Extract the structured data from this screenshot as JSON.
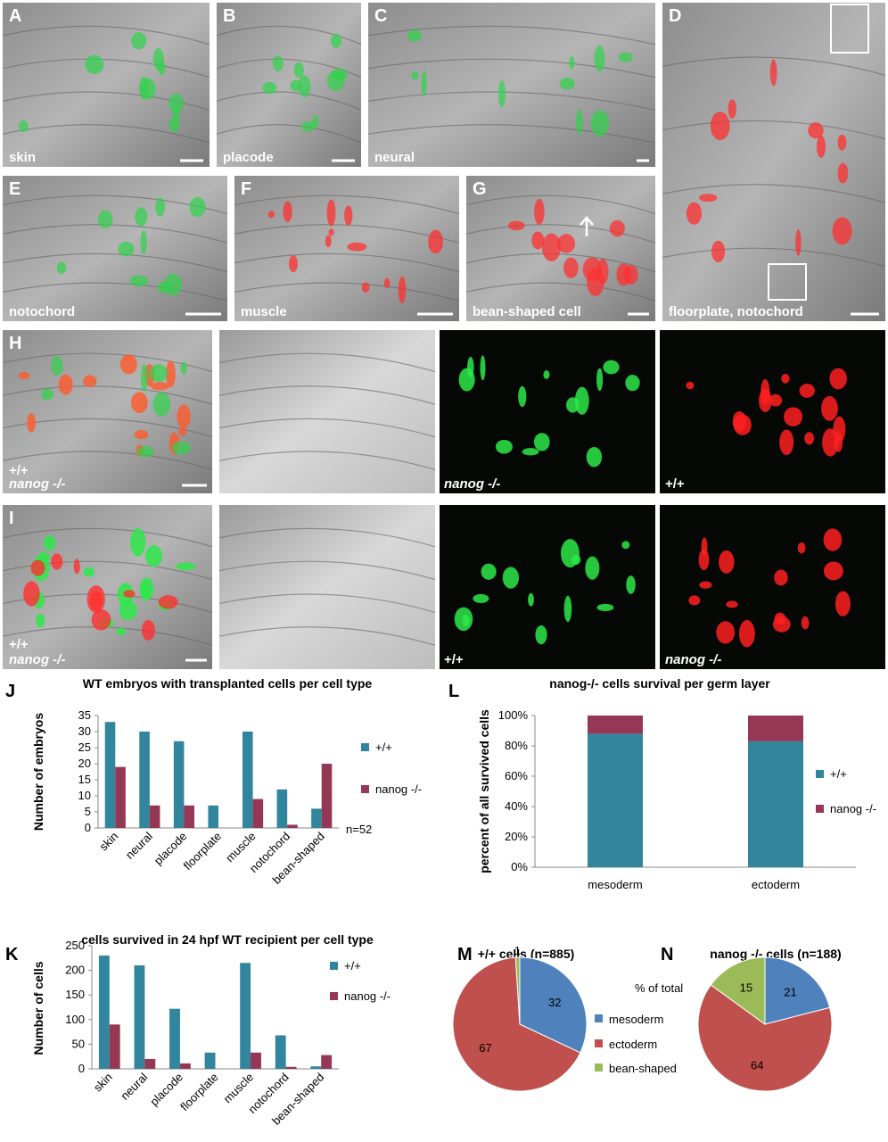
{
  "figure": {
    "panels": [
      {
        "letter": "A",
        "captions": [
          "skin"
        ]
      },
      {
        "letter": "B",
        "captions": [
          "placode"
        ]
      },
      {
        "letter": "C",
        "captions": [
          "neural"
        ]
      },
      {
        "letter": "D",
        "captions": [
          "floorplate, notochord"
        ]
      },
      {
        "letter": "E",
        "captions": [
          "notochord"
        ]
      },
      {
        "letter": "F",
        "captions": [
          "muscle"
        ]
      },
      {
        "letter": "G",
        "captions": [
          "bean-shaped cell"
        ]
      },
      {
        "letter": "H",
        "captions": [
          "+/+",
          "nanog -/-",
          "nanog -/-",
          "+/+"
        ]
      },
      {
        "letter": "I",
        "captions": [
          "+/+",
          "nanog -/-",
          "+/+",
          "nanog -/-"
        ]
      }
    ]
  },
  "chart_data": [
    {
      "type": "bar",
      "letter": "J",
      "title": "WT embryos with transplanted cells per cell type",
      "y_label": "Number of embryos",
      "annotation": "n=52",
      "categories": [
        "skin",
        "neural",
        "placode",
        "floorplate",
        "muscle",
        "notochord",
        "bean-shaped"
      ],
      "series": [
        {
          "name": "+/+",
          "color": "#31859c",
          "values": [
            33,
            30,
            27,
            7,
            30,
            12,
            6
          ]
        },
        {
          "name": "nanog -/-",
          "color": "#953755",
          "values": [
            19,
            7,
            7,
            0,
            9,
            1,
            20
          ]
        }
      ],
      "ylim": [
        0,
        35
      ],
      "yticks": [
        0,
        5,
        10,
        15,
        20,
        25,
        30,
        35
      ]
    },
    {
      "type": "stacked_bar",
      "letter": "L",
      "title": "nanog-/- cells survival per germ layer",
      "y_label": "percent of all survived cells",
      "categories": [
        "mesoderm",
        "ectoderm"
      ],
      "series": [
        {
          "name": "+/+",
          "color": "#31859c",
          "values": [
            88,
            83
          ]
        },
        {
          "name": "nanog -/-",
          "color": "#953755",
          "values": [
            12,
            17
          ]
        }
      ],
      "ylim": [
        0,
        100
      ],
      "yticks": [
        {
          "value": 0,
          "label": "0%"
        },
        {
          "value": 20,
          "label": "20%"
        },
        {
          "value": 40,
          "label": "40%"
        },
        {
          "value": 60,
          "label": "60%"
        },
        {
          "value": 80,
          "label": "80%"
        },
        {
          "value": 100,
          "label": "100%"
        }
      ]
    },
    {
      "type": "bar",
      "letter": "K",
      "title": "cells survived in 24 hpf WT recipient per cell type",
      "y_label": "Number of cells",
      "categories": [
        "skin",
        "neural",
        "placode",
        "floorplate",
        "muscle",
        "notochord",
        "bean-shaped"
      ],
      "series": [
        {
          "name": "+/+",
          "color": "#31859c",
          "values": [
            230,
            210,
            122,
            33,
            215,
            68,
            5
          ]
        },
        {
          "name": "nanog -/-",
          "color": "#953755",
          "values": [
            90,
            20,
            11,
            0,
            33,
            4,
            28
          ]
        }
      ],
      "ylim": [
        0,
        250
      ],
      "yticks": [
        0,
        50,
        100,
        150,
        200,
        250
      ]
    },
    {
      "type": "pie",
      "letter": "M",
      "title": "+/+ cells (n=885)",
      "legend_title": "% of total",
      "categories": [
        "mesoderm",
        "ectoderm",
        "bean-shaped"
      ],
      "colors": [
        "#4f81bd",
        "#c0504d",
        "#9bbb59"
      ],
      "values": [
        32,
        67,
        1
      ]
    },
    {
      "type": "pie",
      "letter": "N",
      "title": "nanog -/-  cells (n=188)",
      "values": [
        21,
        64,
        15
      ]
    }
  ]
}
